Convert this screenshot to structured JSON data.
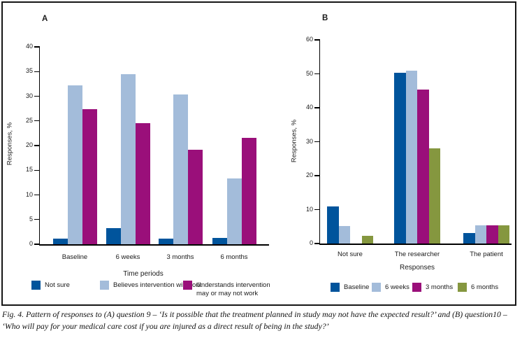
{
  "figure": {
    "caption": "Fig. 4. Pattern of responses to (A) question 9 – ‘Is it possible that the treatment planned in study may not have the expected result?’ and (B) question10 – ‘Who will pay for your medical care cost if you are injured as a direct result of being in the study?’"
  },
  "colors": {
    "dark_blue": "#00549c",
    "light_blue": "#a3bcda",
    "magenta": "#9a0f7a",
    "olive_green": "#85973f",
    "axis": "#000000"
  },
  "chart_data": [
    {
      "type": "bar",
      "panel_label": "A",
      "title": "",
      "ylabel": "Responses, %",
      "xlabel": "Time periods",
      "ylim": [
        0,
        40
      ],
      "ytick_step": 5,
      "grid": false,
      "legend_position": "bottom",
      "categories": [
        "Baseline",
        "6 weeks",
        "3 months",
        "6 months"
      ],
      "series": [
        {
          "name": "Not sure",
          "color": "#00549c",
          "values": [
            1.2,
            3.3,
            1.2,
            1.3
          ]
        },
        {
          "name": "Believes intervention will work",
          "color": "#a3bcda",
          "values": [
            32.2,
            34.4,
            30.4,
            13.4
          ]
        },
        {
          "name": "Understands intervention may or may not work",
          "color": "#9a0f7a",
          "values": [
            27.4,
            24.5,
            19.2,
            21.5
          ]
        }
      ]
    },
    {
      "type": "bar",
      "panel_label": "B",
      "title": "",
      "ylabel": "Responses, %",
      "xlabel": "Responses",
      "ylim": [
        0,
        60
      ],
      "ytick_step": 10,
      "grid": false,
      "legend_position": "bottom",
      "categories": [
        "Not sure",
        "The researcher",
        "The patient"
      ],
      "series": [
        {
          "name": "Baseline",
          "color": "#00549c",
          "values": [
            11.0,
            50.3,
            3.1
          ]
        },
        {
          "name": "6 weeks",
          "color": "#a3bcda",
          "values": [
            5.2,
            51.0,
            5.4
          ]
        },
        {
          "name": "3 months",
          "color": "#9a0f7a",
          "values": [
            0,
            45.4,
            5.4
          ]
        },
        {
          "name": "6 months",
          "color": "#85973f",
          "values": [
            2.3,
            28.0,
            5.4
          ]
        }
      ]
    }
  ]
}
